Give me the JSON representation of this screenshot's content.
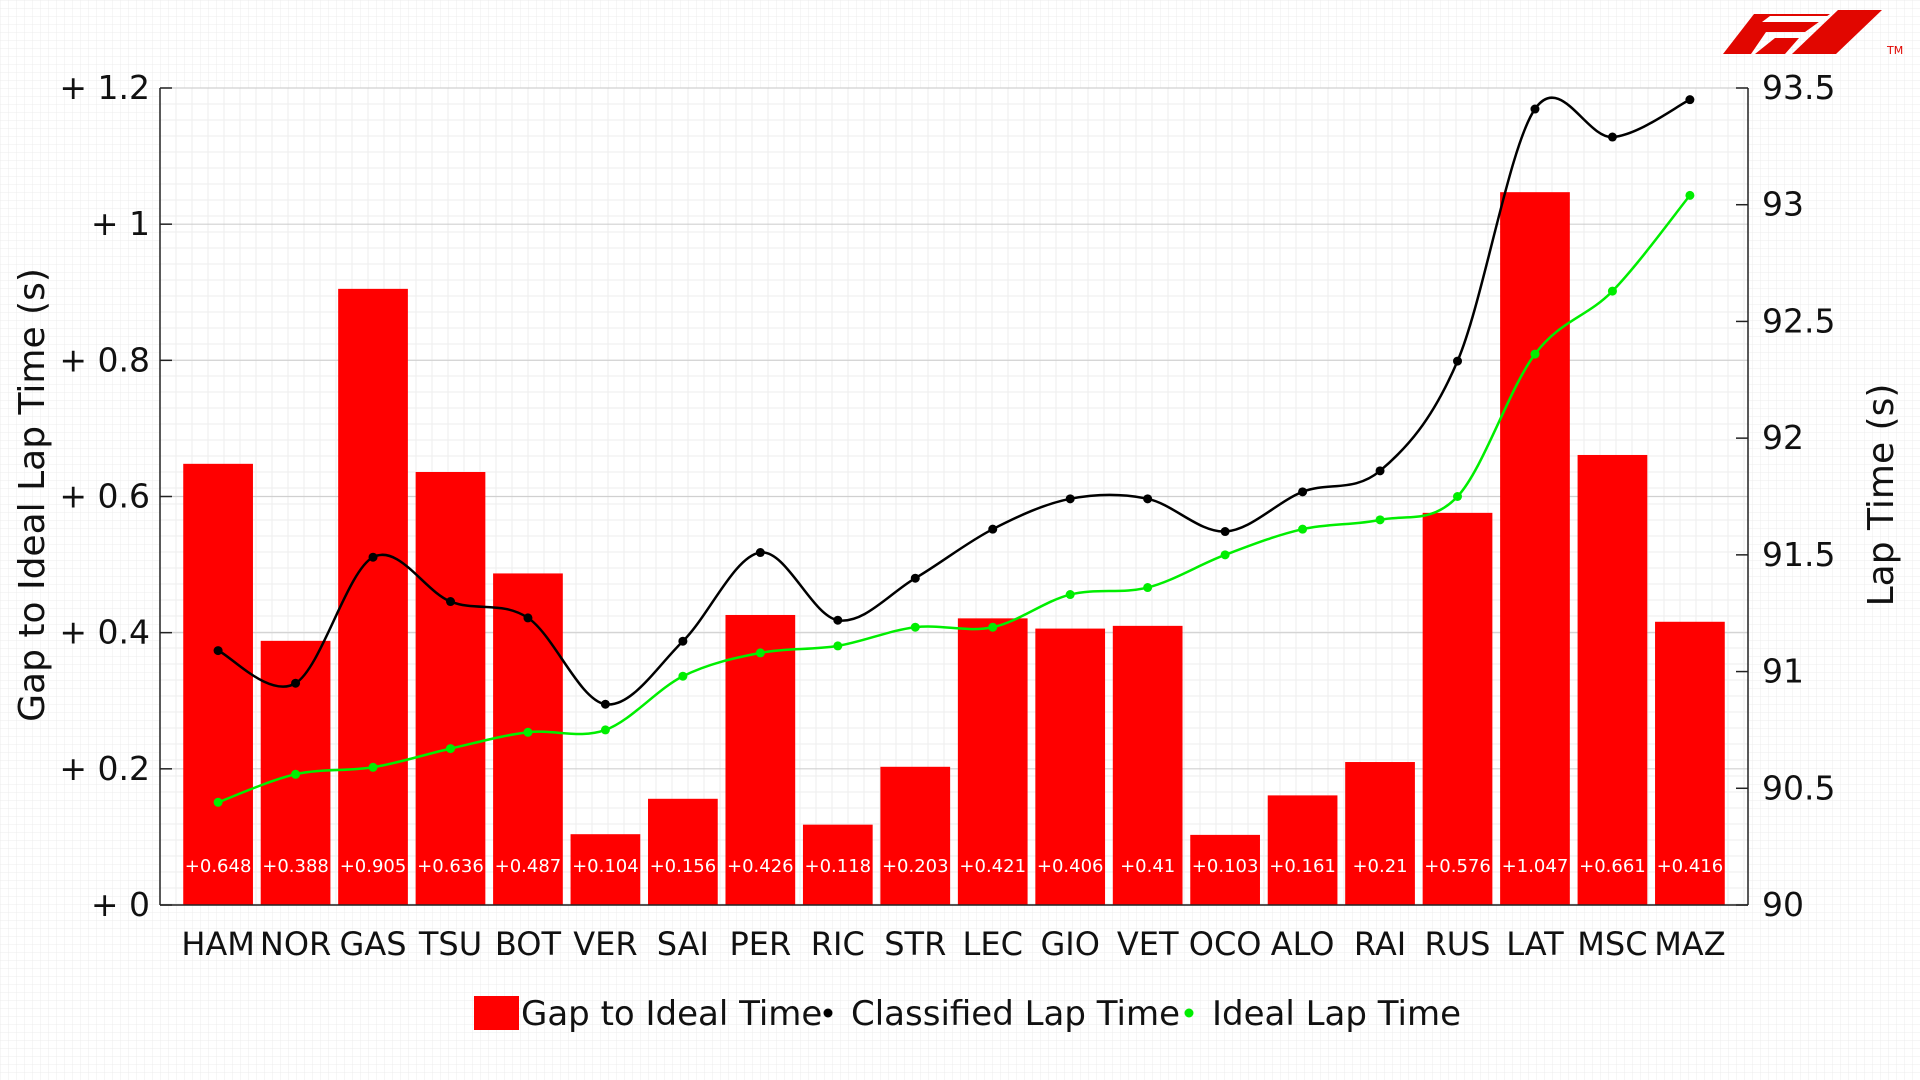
{
  "colors": {
    "bar": "#ff0000",
    "classified": "#000000",
    "ideal": "#00ee00",
    "logo": "#e10600"
  },
  "logo": {
    "icon": "f1-logo-icon",
    "text": "F1"
  },
  "tm": "TM",
  "chart_data": {
    "type": "bar",
    "categories": [
      "HAM",
      "NOR",
      "GAS",
      "TSU",
      "BOT",
      "VER",
      "SAI",
      "PER",
      "RIC",
      "STR",
      "LEC",
      "GIO",
      "VET",
      "OCO",
      "ALO",
      "RAI",
      "RUS",
      "LAT",
      "MSC",
      "MAZ"
    ],
    "series": [
      {
        "name": "Gap to Ideal Time",
        "axis": "left",
        "type": "bar",
        "values": [
          0.648,
          0.388,
          0.905,
          0.636,
          0.487,
          0.104,
          0.156,
          0.426,
          0.118,
          0.203,
          0.421,
          0.406,
          0.41,
          0.103,
          0.161,
          0.21,
          0.576,
          1.047,
          0.661,
          0.416
        ],
        "labels": [
          "+0.648",
          "+0.388",
          "+0.905",
          "+0.636",
          "+0.487",
          "+0.104",
          "+0.156",
          "+0.426",
          "+0.118",
          "+0.203",
          "+0.421",
          "+0.406",
          "+0.41",
          "+0.103",
          "+0.161",
          "+0.21",
          "+0.576",
          "+1.047",
          "+0.661",
          "+0.416"
        ]
      },
      {
        "name": "Classified Lap Time",
        "axis": "right",
        "type": "line",
        "values": [
          91.09,
          90.95,
          91.49,
          91.3,
          91.23,
          90.86,
          91.13,
          91.51,
          91.22,
          91.4,
          91.61,
          91.74,
          91.74,
          91.6,
          91.77,
          91.86,
          92.33,
          93.41,
          93.29,
          93.45
        ]
      },
      {
        "name": "Ideal Lap Time",
        "axis": "right",
        "type": "line",
        "values": [
          90.44,
          90.56,
          90.59,
          90.67,
          90.74,
          90.75,
          90.98,
          91.08,
          91.11,
          91.19,
          91.19,
          91.33,
          91.36,
          91.5,
          91.61,
          91.65,
          91.75,
          92.36,
          92.63,
          93.04
        ]
      }
    ],
    "ylabel_left": "Gap to Ideal Lap Time (s)",
    "ylabel_right": "Lap Time (s)",
    "ylim_left": [
      0,
      1.2
    ],
    "ylim_right": [
      90,
      93.5
    ],
    "yticks_left": [
      "+ 0",
      "+ 0.2",
      "+ 0.4",
      "+ 0.6",
      "+ 0.8",
      "+ 1",
      "+ 1.2"
    ],
    "yticks_right": [
      "90",
      "90.5",
      "91",
      "91.5",
      "92",
      "92.5",
      "93",
      "93.5"
    ],
    "grid": true,
    "legend_position": "bottom"
  }
}
